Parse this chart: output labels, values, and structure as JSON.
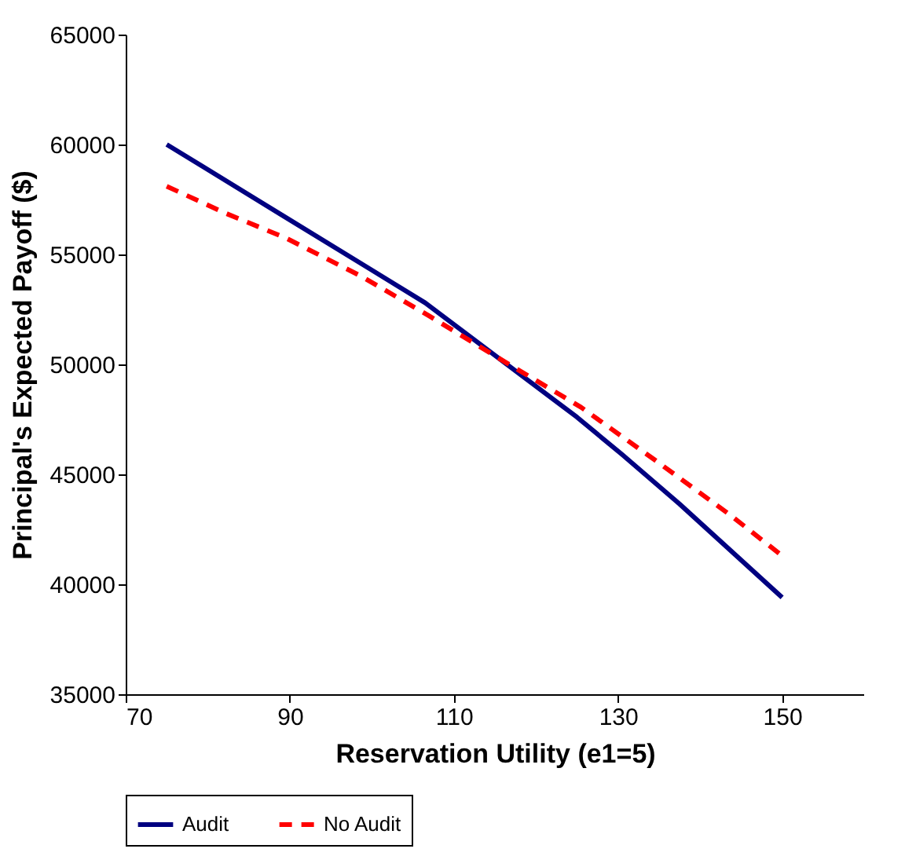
{
  "chart_data": {
    "type": "line",
    "xlabel": "Reservation Utility (e1=5)",
    "ylabel": "Principal's Expected Payoff ($)",
    "xlim": [
      70,
      160
    ],
    "xticks": [
      70,
      90,
      110,
      130,
      150
    ],
    "ylim": [
      35000,
      65000
    ],
    "yticks": [
      35000,
      40000,
      45000,
      50000,
      55000,
      60000,
      65000
    ],
    "grid": false,
    "legend": "bottom",
    "marker": "none",
    "series": [
      {
        "name": "Audit",
        "color": "#000080",
        "line_style": "solid",
        "x": [
          75,
          89,
          99.5,
          106.5,
          125,
          130.5,
          137.5,
          150
        ],
        "values": [
          60000,
          56800,
          54400,
          52800,
          47600,
          45900,
          43650,
          39400
        ]
      },
      {
        "name": "No Audit",
        "color": "#ff0000",
        "line_style": "dashed",
        "x": [
          75,
          82,
          89.5,
          98.75,
          107,
          116.5,
          125.5,
          134.5,
          143.5,
          150
        ],
        "values": [
          58100,
          56900,
          55750,
          54000,
          52200,
          50050,
          48050,
          45650,
          43200,
          41300
        ]
      }
    ]
  }
}
